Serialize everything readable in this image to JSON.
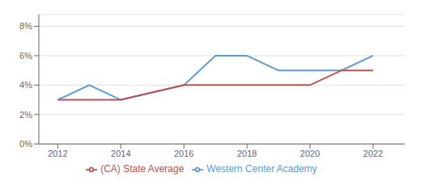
{
  "chart_data": {
    "type": "line",
    "x": [
      2012,
      2013,
      2014,
      2016,
      2017,
      2018,
      2019,
      2020,
      2021,
      2022
    ],
    "series": [
      {
        "name": "Western Center Academy",
        "color": "#5B9BD5",
        "values": [
          3.0,
          4.0,
          3.0,
          4.0,
          6.0,
          6.0,
          5.0,
          5.0,
          5.0,
          6.0
        ]
      },
      {
        "name": "(CA) State Average",
        "color": "#C0504D",
        "values": [
          3.0,
          3.0,
          3.0,
          4.0,
          4.0,
          4.0,
          4.0,
          4.0,
          5.0,
          5.0
        ]
      }
    ],
    "xlim": [
      2011.4,
      2023.0
    ],
    "xticks": [
      2012,
      2014,
      2016,
      2018,
      2020,
      2022
    ],
    "ylim": [
      0,
      8.8
    ],
    "yticks": [
      {
        "value": 0,
        "label": "0%"
      },
      {
        "value": 2,
        "label": "2%"
      },
      {
        "value": 4,
        "label": "4%"
      },
      {
        "value": 6,
        "label": "6%"
      },
      {
        "value": 8,
        "label": "8%"
      }
    ],
    "grid": true,
    "legend": "bottom"
  }
}
